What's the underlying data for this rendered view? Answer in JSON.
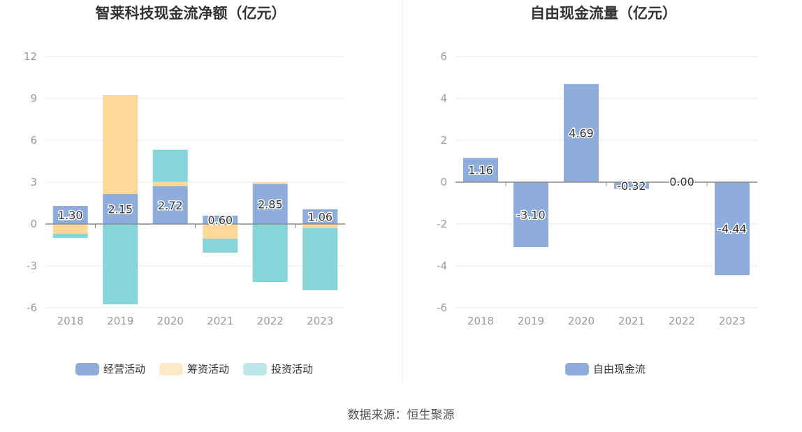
{
  "colors": {
    "operating": "#8eaddb",
    "financing": "#fdd899",
    "investing": "#86d5d9",
    "free_cash_flow": "#8eaddb",
    "grid": "#e4e8f2",
    "axis": "#8c8c8c",
    "tick_text": "#999999",
    "title_text": "#333333"
  },
  "source_text": "数据来源：恒生聚源",
  "chart_data": [
    {
      "type": "bar",
      "stacked": true,
      "title": "智莱科技现金流净额（亿元）",
      "categories": [
        "2018",
        "2019",
        "2020",
        "2021",
        "2022",
        "2023"
      ],
      "ylim": [
        -6,
        12
      ],
      "yticks": [
        12,
        9,
        6,
        3,
        0,
        -3,
        -6
      ],
      "ytick_labels": [
        "12",
        "9",
        "6",
        "3",
        "0",
        "-3",
        "-6"
      ],
      "grid": true,
      "legend_position": "bottom",
      "series": [
        {
          "name": "经营活动",
          "color_key": "operating",
          "values": [
            1.3,
            2.15,
            2.72,
            0.6,
            2.85,
            1.06
          ],
          "labels": [
            "1.30",
            "2.15",
            "2.72",
            "0.60",
            "2.85",
            "1.06"
          ]
        },
        {
          "name": "筹资活动",
          "color_key": "financing",
          "values": [
            -0.7,
            7.1,
            0.3,
            -1.05,
            0.15,
            -0.3
          ],
          "labels": null
        },
        {
          "name": "投资活动",
          "color_key": "investing",
          "values": [
            -0.3,
            -5.75,
            2.3,
            -1.0,
            -4.15,
            -4.45
          ],
          "labels": null
        }
      ]
    },
    {
      "type": "bar",
      "stacked": false,
      "title": "自由现金流量（亿元）",
      "categories": [
        "2018",
        "2019",
        "2020",
        "2021",
        "2022",
        "2023"
      ],
      "ylim": [
        -6,
        6
      ],
      "yticks": [
        6,
        4,
        2,
        0,
        -2,
        -4,
        -6
      ],
      "ytick_labels": [
        "6",
        "4",
        "2",
        "0",
        "-2",
        "-4",
        "-6"
      ],
      "grid": true,
      "legend_position": "bottom",
      "series": [
        {
          "name": "自由现金流",
          "color_key": "free_cash_flow",
          "values": [
            1.16,
            -3.1,
            4.69,
            -0.32,
            0.0,
            -4.44
          ],
          "labels": [
            "1.16",
            "-3.10",
            "4.69",
            "-0.32",
            "0.00",
            "-4.44"
          ]
        }
      ]
    }
  ]
}
